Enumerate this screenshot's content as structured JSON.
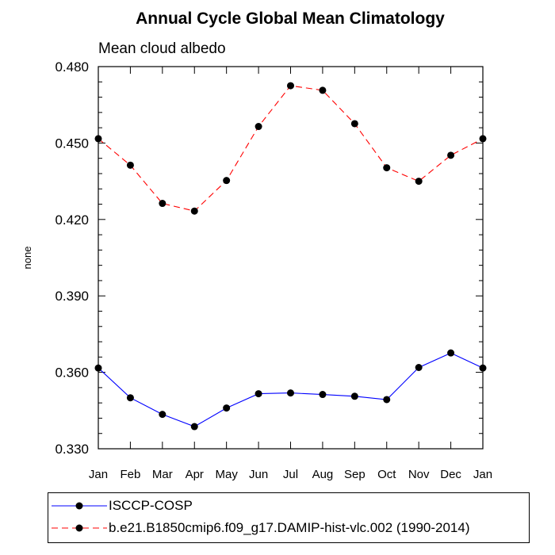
{
  "chart_data": {
    "type": "line",
    "title": "Annual Cycle Global Mean Climatology",
    "subtitle": "Mean cloud albedo",
    "xlabel": "",
    "ylabel": "none",
    "categories": [
      "Jan",
      "Feb",
      "Mar",
      "Apr",
      "May",
      "Jun",
      "Jul",
      "Aug",
      "Sep",
      "Oct",
      "Nov",
      "Dec",
      "Jan"
    ],
    "ylim": [
      0.33,
      0.48
    ],
    "yticks": [
      "0.330",
      "0.360",
      "0.390",
      "0.420",
      "0.450",
      "0.480"
    ],
    "ytick_values": [
      0.33,
      0.36,
      0.39,
      0.42,
      0.45,
      0.48
    ],
    "grid": false,
    "legend_position": "bottom",
    "series": [
      {
        "name": "ISCCP-COSP",
        "color": "#0000ff",
        "line_style": "solid",
        "marker": "filled-circle",
        "values": [
          0.3617,
          0.35,
          0.3435,
          0.3387,
          0.346,
          0.3516,
          0.3519,
          0.3513,
          0.3506,
          0.3493,
          0.3619,
          0.3676,
          0.3617
        ]
      },
      {
        "name": "b.e21.B1850cmip6.f09_g17.DAMIP-hist-vlc.002 (1990-2014)",
        "color": "#ff0000",
        "line_style": "dashed",
        "marker": "filled-circle",
        "values": [
          0.4517,
          0.4413,
          0.4263,
          0.4233,
          0.4353,
          0.4565,
          0.4725,
          0.4707,
          0.4576,
          0.4403,
          0.435,
          0.4452,
          0.4517
        ]
      }
    ]
  }
}
